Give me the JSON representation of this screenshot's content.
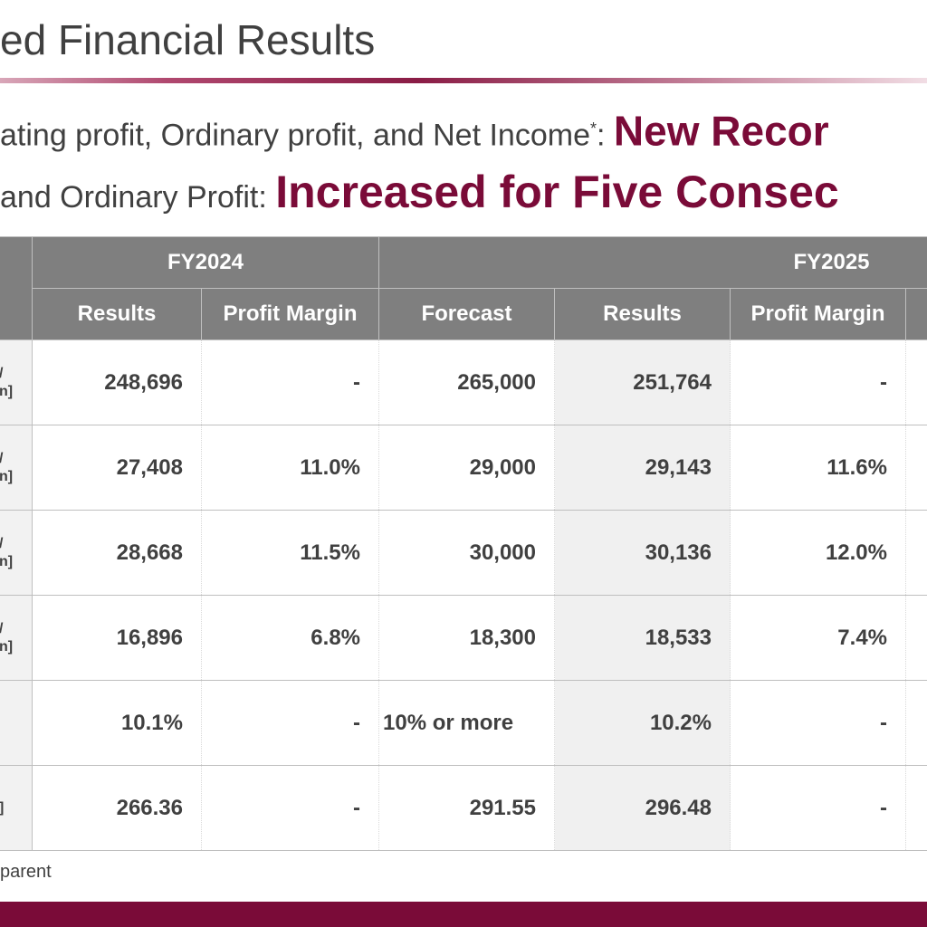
{
  "title": "ed Financial Results",
  "headline1": {
    "prefix": "ating profit, Ordinary profit, and Net Income",
    "sup": "*",
    "colon": ": ",
    "highlight": "New Recor"
  },
  "headline2": {
    "prefix": "and Ordinary Profit: ",
    "highlight": "Increased for Five Consec"
  },
  "table": {
    "fy2024": "FY2024",
    "fy2025": "FY2025",
    "headers": [
      "Results",
      "Profit Margin",
      "Forecast",
      "Results",
      "Profit Margin"
    ],
    "rows": [
      {
        "label_a": "/",
        "label_b": "n]",
        "c1": "248,696",
        "c2": "-",
        "c3": "265,000",
        "c4": "251,764",
        "c5": "-"
      },
      {
        "label_a": "/",
        "label_b": "n]",
        "c1": "27,408",
        "c2": "11.0%",
        "c3": "29,000",
        "c4": "29,143",
        "c5": "11.6%"
      },
      {
        "label_a": "/",
        "label_b": "n]",
        "c1": "28,668",
        "c2": "11.5%",
        "c3": "30,000",
        "c4": "30,136",
        "c5": "12.0%"
      },
      {
        "label_a": "/",
        "label_b": "n]",
        "c1": "16,896",
        "c2": "6.8%",
        "c3": "18,300",
        "c4": "18,533",
        "c5": "7.4%"
      },
      {
        "label_a": "",
        "label_b": "",
        "c1": "10.1%",
        "c2": "-",
        "c3": "10% or more",
        "c4": "10.2%",
        "c5": "-"
      },
      {
        "label_a": "",
        "label_b": "]",
        "c1": "266.36",
        "c2": "-",
        "c3": "291.55",
        "c4": "296.48",
        "c5": "-"
      }
    ]
  },
  "footnote": "parent",
  "colors": {
    "accent": "#7a0b38",
    "header_gray": "#7f7f7f"
  }
}
